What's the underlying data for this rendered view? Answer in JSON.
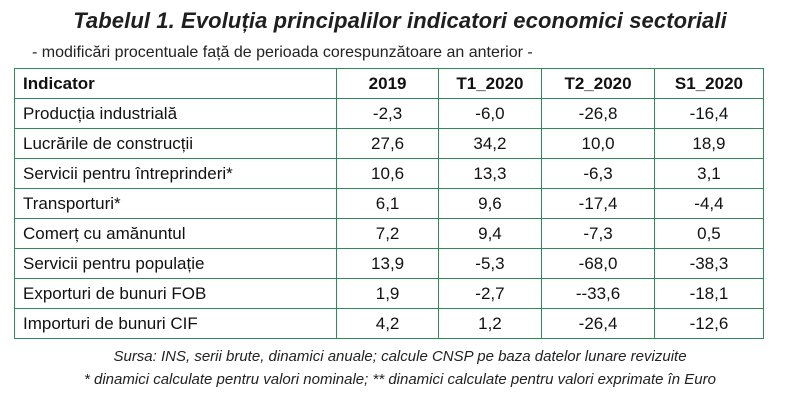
{
  "title": "Tabelul 1. Evoluția principalilor indicatori economici sectoriali",
  "subtitle": "- modificări procentuale față de perioada corespunzătoare an anterior -",
  "table": {
    "headers": [
      "Indicator",
      "2019",
      "T1_2020",
      "T2_2020",
      "S1_2020"
    ],
    "rows": [
      [
        "Producția industrială",
        "-2,3",
        "-6,0",
        "-26,8",
        "-16,4"
      ],
      [
        "Lucrările de construcții",
        "27,6",
        "34,2",
        "10,0",
        "18,9"
      ],
      [
        "Servicii pentru întreprinderi*",
        "10,6",
        "13,3",
        "-6,3",
        "3,1"
      ],
      [
        "Transporturi*",
        "6,1",
        "9,6",
        "-17,4",
        "-4,4"
      ],
      [
        "Comerț cu amănuntul",
        "7,2",
        "9,4",
        "-7,3",
        "0,5"
      ],
      [
        "Servicii pentru populație",
        "13,9",
        "-5,3",
        "-68,0",
        "-38,3"
      ],
      [
        "Exporturi de bunuri FOB",
        "1,9",
        "-2,7",
        "--33,6",
        "-18,1"
      ],
      [
        "Importuri de bunuri CIF",
        "4,2",
        "1,2",
        "-26,4",
        "-12,6"
      ]
    ]
  },
  "source": "Sursa: INS, serii brute, dinamici anuale; calcule CNSP pe baza datelor lunare revizuite",
  "footnote": "* dinamici calculate pentru valori nominale; ** dinamici calculate pentru valori exprimate în Euro",
  "colors": {
    "border": "#2e8b57",
    "text": "#111111"
  }
}
